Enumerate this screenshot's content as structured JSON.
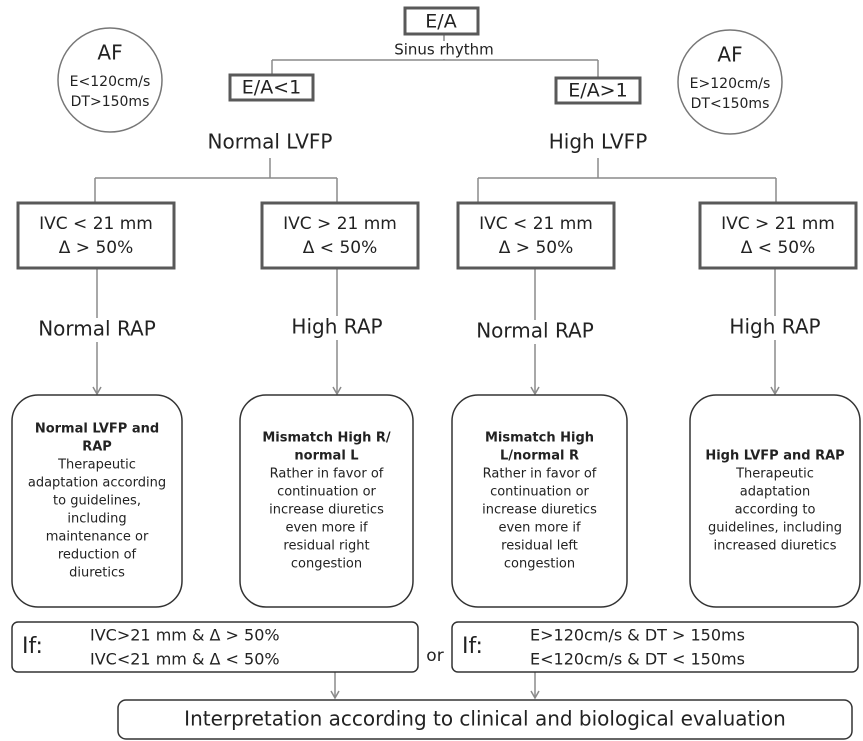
{
  "top": {
    "label": "E/A",
    "note": "Sinus rhythm"
  },
  "af": [
    {
      "title": "AF",
      "lines": [
        "E<120cm/s",
        "DT>150ms"
      ]
    },
    {
      "title": "AF",
      "lines": [
        "E>120cm/s",
        "DT<150ms"
      ]
    }
  ],
  "branches": [
    {
      "label": "E/A<1",
      "result": "Normal LVFP",
      "columns": [
        {
          "ivc": [
            "IVC < 21 mm",
            "Δ > 50%"
          ],
          "rap": "Normal RAP",
          "box": {
            "title": [
              "Normal LVFP and",
              "RAP"
            ],
            "body": [
              "Therapeutic",
              "adaptation according",
              "to guidelines,",
              "including",
              "maintenance or",
              "reduction of",
              "diuretics"
            ]
          }
        },
        {
          "ivc": [
            "IVC > 21 mm",
            "Δ < 50%"
          ],
          "rap": "High RAP",
          "box": {
            "title": [
              "Mismatch High R/",
              "normal L"
            ],
            "body": [
              "Rather in favor of",
              "continuation or",
              "increase diuretics",
              "even more if",
              "residual right",
              "congestion"
            ]
          }
        }
      ]
    },
    {
      "label": "E/A>1",
      "result": "High LVFP",
      "columns": [
        {
          "ivc": [
            "IVC < 21 mm",
            "Δ > 50%"
          ],
          "rap": "Normal RAP",
          "box": {
            "title": [
              "Mismatch High",
              "L/normal R"
            ],
            "body": [
              "Rather in favor of",
              "continuation or",
              "increase diuretics",
              "even more if",
              "residual left",
              "congestion"
            ]
          }
        },
        {
          "ivc": [
            "IVC > 21 mm",
            "Δ < 50%"
          ],
          "rap": "High RAP",
          "box": {
            "title": [
              "High LVFP and RAP"
            ],
            "body": [
              "Therapeutic",
              "adaptation",
              "according to",
              "guidelines, including",
              "increased diuretics"
            ]
          }
        }
      ]
    }
  ],
  "conditions": [
    {
      "prefix": "If:",
      "lines": [
        "IVC>21 mm & Δ > 50%",
        "IVC<21 mm & Δ < 50%"
      ]
    },
    {
      "prefix": "If:",
      "lines": [
        "E>120cm/s & DT > 150ms",
        "E<120cm/s & DT < 150ms"
      ]
    }
  ],
  "or": "or",
  "conclusion": "Interpretation according to clinical and biological evaluation"
}
